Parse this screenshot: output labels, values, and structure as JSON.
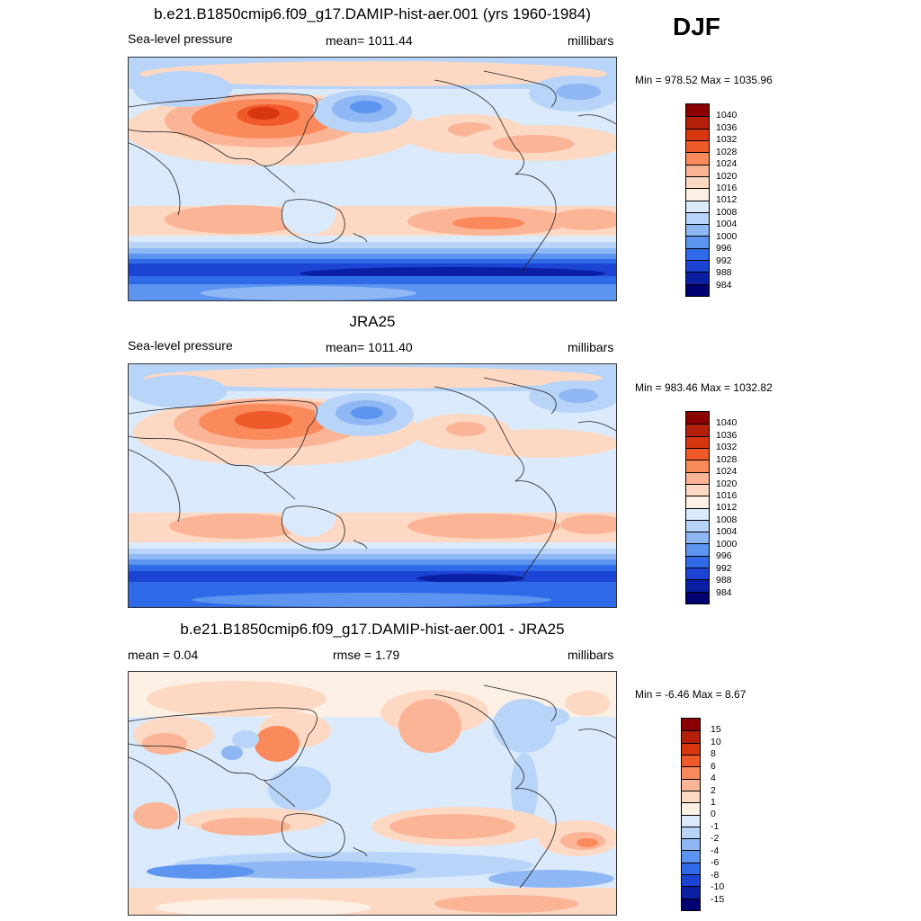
{
  "season": "DJF",
  "panels": [
    {
      "title": "b.e21.B1850cmip6.f09_g17.DAMIP-hist-aer.001 (yrs 1960-1984)",
      "left_label": "Sea-level pressure",
      "center_label": "mean= 1011.44",
      "right_label": "millibars",
      "minmax": "Min = 978.52 Max = 1035.96",
      "levels": [
        "1040",
        "1036",
        "1032",
        "1028",
        "1024",
        "1020",
        "1016",
        "1012",
        "1008",
        "1004",
        "1000",
        "996",
        "992",
        "988",
        "984"
      ],
      "colors": [
        "#8b0000",
        "#b4200a",
        "#d8360f",
        "#f05a2a",
        "#fa8a5c",
        "#fbb496",
        "#fdd9c4",
        "#fcf0e4",
        "#dbeafb",
        "#b8d4f8",
        "#8fb7f4",
        "#5c94ef",
        "#2f6ae9",
        "#1b43d4",
        "#0a1fa4",
        "#000070"
      ]
    },
    {
      "title": "JRA25",
      "left_label": "Sea-level pressure",
      "center_label": "mean= 1011.40",
      "right_label": "millibars",
      "minmax": "Min = 983.46 Max = 1032.82",
      "levels": [
        "1040",
        "1036",
        "1032",
        "1028",
        "1024",
        "1020",
        "1016",
        "1012",
        "1008",
        "1004",
        "1000",
        "996",
        "992",
        "988",
        "984"
      ],
      "colors": [
        "#8b0000",
        "#b4200a",
        "#d8360f",
        "#f05a2a",
        "#fa8a5c",
        "#fbb496",
        "#fdd9c4",
        "#fcf0e4",
        "#dbeafb",
        "#b8d4f8",
        "#8fb7f4",
        "#5c94ef",
        "#2f6ae9",
        "#1b43d4",
        "#0a1fa4",
        "#000070"
      ]
    },
    {
      "title": "b.e21.B1850cmip6.f09_g17.DAMIP-hist-aer.001 - JRA25",
      "left_label": "mean =   0.04",
      "center_label": "rmse =   1.79",
      "right_label": "millibars",
      "minmax": "Min =  -6.46 Max =   8.67",
      "levels": [
        "15",
        "10",
        "8",
        "6",
        "4",
        "2",
        "1",
        "0",
        "-1",
        "-2",
        "-4",
        "-6",
        "-8",
        "-10",
        "-15"
      ],
      "colors": [
        "#8b0000",
        "#b4200a",
        "#d8360f",
        "#f05a2a",
        "#fa8a5c",
        "#fbb496",
        "#fdd9c4",
        "#fcf0e4",
        "#dbeafb",
        "#b8d4f8",
        "#8fb7f4",
        "#5c94ef",
        "#2f6ae9",
        "#1b43d4",
        "#0a1fa4",
        "#000070"
      ]
    }
  ]
}
